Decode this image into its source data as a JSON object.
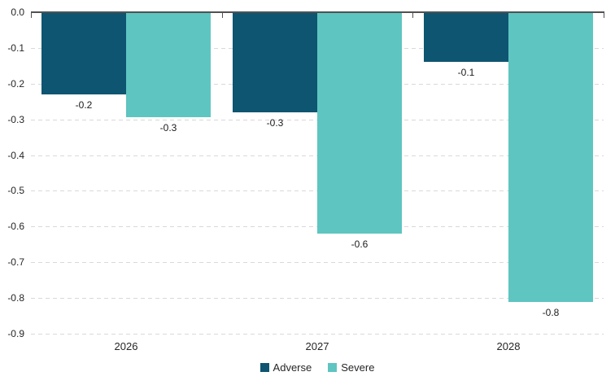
{
  "chart_data": {
    "type": "bar",
    "title": "",
    "categories": [
      "2026",
      "2027",
      "2028"
    ],
    "series": [
      {
        "name": "Adverse",
        "color": "#0E5571",
        "values": [
          -0.2,
          -0.3,
          -0.1
        ],
        "values_precise": [
          -0.23,
          -0.28,
          -0.14
        ],
        "data_labels": [
          "-0.2",
          "-0.3",
          "-0.1"
        ]
      },
      {
        "name": "Severe",
        "color": "#5EC5C1",
        "values": [
          -0.3,
          -0.6,
          -0.8
        ],
        "values_precise": [
          -0.293,
          -0.62,
          -0.81
        ],
        "data_labels": [
          "-0.3",
          "-0.6",
          "-0.8"
        ]
      }
    ],
    "ylim": [
      -0.9,
      0.0
    ],
    "ytick_labels": [
      "0.0",
      "-0.1",
      "-0.2",
      "-0.3",
      "-0.4",
      "-0.5",
      "-0.6",
      "-0.7",
      "-0.8",
      "-0.9"
    ],
    "ytick_values": [
      0,
      -0.1,
      -0.2,
      -0.3,
      -0.4,
      -0.5,
      -0.6,
      -0.7,
      -0.8,
      -0.9
    ],
    "grid": {
      "horizontal": true,
      "style": "dashed",
      "color": "#D9D9D9"
    },
    "legend": {
      "position": "bottom",
      "items": [
        "Adverse",
        "Severe"
      ]
    },
    "axis": {
      "zero_line_color": "#515151",
      "tick_color": "#515151",
      "label_color": "#262626",
      "data_label_color": "#1a1a1a"
    },
    "background": "#FFFFFF"
  }
}
